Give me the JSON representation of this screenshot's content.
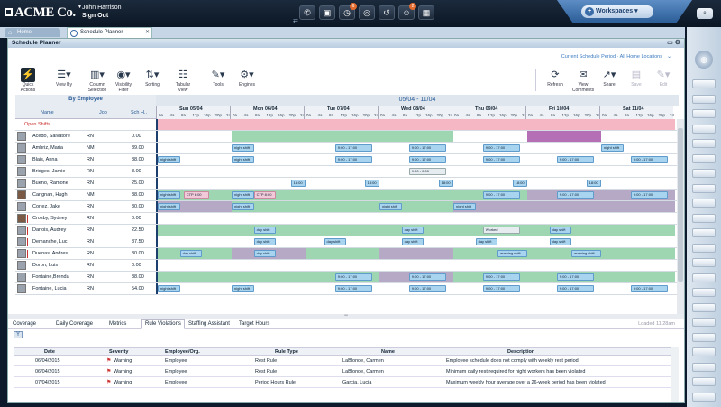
{
  "header": {
    "logo": "ACME Co.",
    "user_name": "John Harrison",
    "sign_out": "Sign Out",
    "badges": [
      "6",
      "2"
    ],
    "workspaces_label": "Workspaces"
  },
  "tabs": [
    {
      "label": "Home"
    },
    {
      "label": "Schedule Planner"
    }
  ],
  "app": {
    "title": "Schedule Planner",
    "period": "Current Schedule Period · All Home Locations",
    "toolbar": [
      {
        "label": "Quick Actions",
        "icon": "lightning-icon"
      },
      {
        "label": "View By",
        "icon": "users-icon"
      },
      {
        "label": "Column Selection",
        "icon": "columns-icon"
      },
      {
        "label": "Visibility Filter",
        "icon": "eye-icon"
      },
      {
        "label": "Sorting",
        "icon": "sort-icon"
      },
      {
        "label": "Tabular View",
        "icon": "table-icon"
      },
      {
        "label": "Tools",
        "icon": "wrench-icon"
      },
      {
        "label": "Engines",
        "icon": "engine-icon"
      },
      {
        "label": "Refresh",
        "icon": "refresh-icon"
      },
      {
        "label": "View Comments",
        "icon": "comments-icon"
      },
      {
        "label": "Share",
        "icon": "share-icon"
      },
      {
        "label": "Save",
        "icon": "save-icon"
      },
      {
        "label": "Edit",
        "icon": "edit-icon"
      }
    ]
  },
  "grid": {
    "group_title": "By Employee",
    "columns": [
      "Name",
      "Job",
      "Sch H.."
    ],
    "date_range": "05/04 - 11/04",
    "days": [
      "Sun 05/04",
      "Mon 06/04",
      "Tue 07/04",
      "Wed 08/04",
      "Thu 09/04",
      "Fri 10/04",
      "Sat 11/04"
    ],
    "hours": [
      "0a",
      "4a",
      "8a",
      "12p",
      "16p",
      "20p",
      "24"
    ],
    "open_shifts_label": "Open Shifts",
    "employees": [
      {
        "name": "Acedo, Salvatore",
        "job": "RN",
        "hours": "0.00"
      },
      {
        "name": "Ambriz, Maria",
        "job": "NM",
        "hours": "39.00"
      },
      {
        "name": "Blais, Anna",
        "job": "RN",
        "hours": "38.00"
      },
      {
        "name": "Bridges, Jamie",
        "job": "RN",
        "hours": "8.00"
      },
      {
        "name": "Bueno, Ramone",
        "job": "RN",
        "hours": "25.00"
      },
      {
        "name": "Carignan, Hugh",
        "job": "NM",
        "hours": "38.00"
      },
      {
        "name": "Cortez, Jake",
        "job": "RN",
        "hours": "30.00"
      },
      {
        "name": "Crosby, Sydney",
        "job": "RN",
        "hours": "0.00"
      },
      {
        "name": "Danois, Audrey",
        "job": "RN",
        "hours": "22.50"
      },
      {
        "name": "Demanche, Luc",
        "job": "RN",
        "hours": "37.50"
      },
      {
        "name": "Duenas, Andres",
        "job": "RN",
        "hours": "30.00"
      },
      {
        "name": "Doron, Luis",
        "job": "RN",
        "hours": "0.00"
      },
      {
        "name": "Fontaine,Brenda",
        "job": "RN",
        "hours": "38.00"
      },
      {
        "name": "Fontaine, Lucia",
        "job": "RN",
        "hours": "54.00"
      }
    ],
    "shift_labels": {
      "night": "night shift",
      "day": "day shift",
      "evening": "evening shift",
      "nine_five": "9:00 - 17:00",
      "eighteen": "18:00",
      "ctp": "CTP 8:00",
      "nine_short": "9:00 - 0:00",
      "worked": "Worked"
    }
  },
  "bottom": {
    "tabs": [
      "Coverage",
      "Daily Coverage",
      "Metrics",
      "Rule Violations",
      "Staffing Assistant",
      "Target Hours"
    ],
    "loaded": "Loaded 11:28am",
    "table_columns": [
      "Date",
      "Severity",
      "Employee/Org.",
      "Rule Type",
      "Name",
      "Description"
    ],
    "violations": [
      {
        "date": "06/04/2015",
        "severity": "Warning",
        "emp": "Employee",
        "rule": "Rest Rule",
        "name": "LaBlonde, Carmen",
        "desc": "Employee schedule does not comply with weekly rest period"
      },
      {
        "date": "06/04/2015",
        "severity": "Warning",
        "emp": "Employee",
        "rule": "Rest Rule",
        "name": "LaBlonde, Carmen",
        "desc": "Minimum daily rest required for night workers has been violated"
      },
      {
        "date": "07/04/2015",
        "severity": "Warning",
        "emp": "Employee",
        "rule": "Period Hours Rule",
        "name": "Garcia, Lucia",
        "desc": "Maximum weekly hour average over a 26-week period has been violated"
      }
    ]
  }
}
